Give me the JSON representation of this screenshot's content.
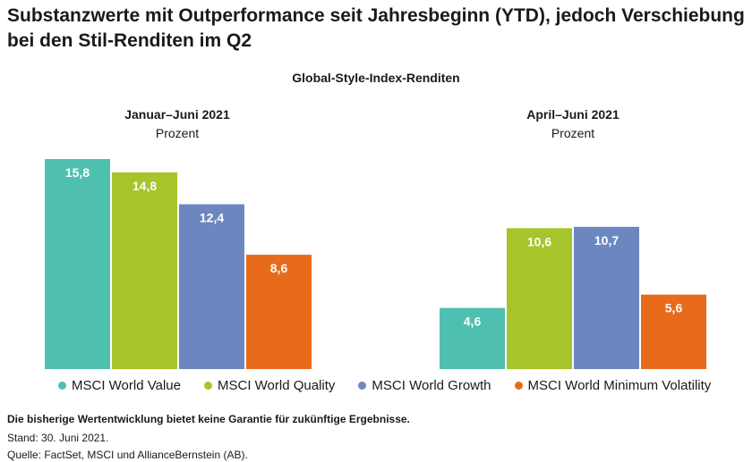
{
  "title": "Substanzwerte mit Outperformance seit Jahresbeginn (YTD), jedoch Verschiebung bei den Stil-Renditen im Q2",
  "subtitle": "Global-Style-Index-Renditen",
  "colors": {
    "MSCI World Value": "#4fbfb0",
    "MSCI World Quality": "#a5c52a",
    "MSCI World Growth": "#6c87bf",
    "MSCI World Minimum Volatility": "#e86b1c"
  },
  "chart_data": [
    {
      "type": "bar",
      "title": "Januar–Juni 2021",
      "ylabel": "Prozent",
      "categories": [
        "MSCI World Value",
        "MSCI World Quality",
        "MSCI World Growth",
        "MSCI World Minimum Volatility"
      ],
      "values": [
        15.8,
        14.8,
        12.4,
        8.6
      ],
      "labels": [
        "15,8",
        "14,8",
        "12,4",
        "8,6"
      ],
      "ylim": [
        0,
        15.8
      ]
    },
    {
      "type": "bar",
      "title": "April–Juni 2021",
      "ylabel": "Prozent",
      "categories": [
        "MSCI World Value",
        "MSCI World Quality",
        "MSCI World Growth",
        "MSCI World Minimum Volatility"
      ],
      "values": [
        4.6,
        10.6,
        10.7,
        5.6
      ],
      "labels": [
        "4,6",
        "10,6",
        "10,7",
        "5,6"
      ],
      "ylim": [
        0,
        15.8
      ]
    }
  ],
  "legend": [
    {
      "label": "MSCI World Value"
    },
    {
      "label": "MSCI World Quality"
    },
    {
      "label": "MSCI World Growth"
    },
    {
      "label": "MSCI World Minimum Volatility"
    }
  ],
  "footer": {
    "disclaimer": "Die bisherige Wertentwicklung bietet keine Garantie für zukünftige Ergebnisse.",
    "date": "Stand: 30. Juni 2021.",
    "source": "Quelle: FactSet, MSCI und AllianceBernstein (AB)."
  }
}
